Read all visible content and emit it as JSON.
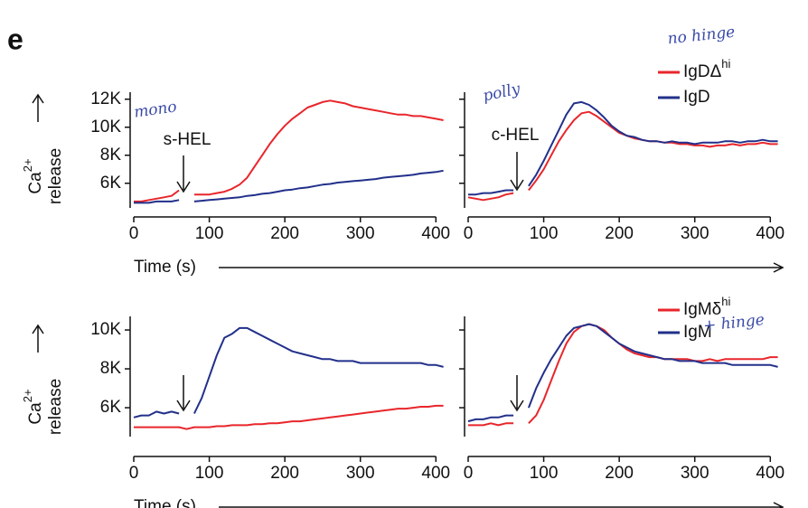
{
  "panel_label": "e",
  "chart_data": [
    {
      "type": "line",
      "ylabel": {
        "base": "Ca",
        "sup": "2+",
        "line2": "release"
      },
      "xlabel": "Time (s)",
      "annotations": [
        "s-HEL",
        "mono"
      ],
      "x": [
        0,
        10,
        20,
        30,
        40,
        50,
        60,
        70,
        80,
        90,
        100,
        110,
        120,
        130,
        140,
        150,
        160,
        170,
        180,
        190,
        200,
        210,
        220,
        230,
        240,
        250,
        260,
        270,
        280,
        290,
        300,
        310,
        320,
        330,
        340,
        350,
        360,
        370,
        380,
        390,
        400,
        410
      ],
      "series": [
        {
          "color": "#e8262b",
          "values": [
            4700,
            4700,
            4800,
            4900,
            5000,
            5100,
            5500,
            null,
            5200,
            5200,
            5200,
            5300,
            5400,
            5600,
            5900,
            6400,
            7200,
            8000,
            8800,
            9500,
            10100,
            10600,
            11000,
            11400,
            11600,
            11800,
            11900,
            11800,
            11700,
            11500,
            11400,
            11300,
            11200,
            11100,
            11000,
            10900,
            10900,
            10800,
            10800,
            10700,
            10600,
            10500
          ]
        },
        {
          "color": "#22308a",
          "values": [
            4600,
            4600,
            4600,
            4700,
            4700,
            4700,
            4800,
            null,
            4700,
            4750,
            4800,
            4850,
            4900,
            4950,
            5000,
            5100,
            5150,
            5250,
            5300,
            5400,
            5500,
            5550,
            5650,
            5700,
            5800,
            5900,
            5950,
            6050,
            6100,
            6150,
            6200,
            6250,
            6300,
            6400,
            6450,
            6500,
            6550,
            6600,
            6700,
            6750,
            6800,
            6900
          ]
        }
      ],
      "xlim": [
        0,
        420
      ],
      "ylim": [
        4500,
        12500
      ],
      "xticks": [
        0,
        100,
        200,
        300,
        400
      ],
      "yticks": [
        {
          "value": 6000,
          "label": "6K"
        },
        {
          "value": 8000,
          "label": "8K"
        },
        {
          "value": 10000,
          "label": "10K"
        },
        {
          "value": 12000,
          "label": "12K"
        }
      ],
      "ytick_labels": true,
      "legend": false
    },
    {
      "type": "line",
      "annotations": [
        "c-HEL",
        "polly",
        "no hinge"
      ],
      "x": [
        0,
        10,
        20,
        30,
        40,
        50,
        60,
        70,
        80,
        90,
        100,
        110,
        120,
        130,
        140,
        150,
        160,
        170,
        180,
        190,
        200,
        210,
        220,
        230,
        240,
        250,
        260,
        270,
        280,
        290,
        300,
        310,
        320,
        330,
        340,
        350,
        360,
        370,
        380,
        390,
        400,
        410
      ],
      "series": [
        {
          "name": "IgDΔ",
          "name_sup": "hi",
          "color": "#e8262b",
          "values": [
            5000,
            4900,
            4800,
            4900,
            5000,
            5200,
            5300,
            null,
            5500,
            6200,
            7000,
            8000,
            9000,
            9800,
            10500,
            11000,
            11100,
            10800,
            10400,
            10000,
            9600,
            9400,
            9200,
            9100,
            9000,
            9000,
            8900,
            8900,
            8800,
            8800,
            8700,
            8700,
            8600,
            8700,
            8700,
            8800,
            8700,
            8800,
            8800,
            8900,
            8800,
            8800
          ]
        },
        {
          "name": "IgD",
          "color": "#22308a",
          "values": [
            5200,
            5200,
            5300,
            5300,
            5400,
            5500,
            5500,
            null,
            5800,
            6600,
            7600,
            8700,
            9800,
            10900,
            11700,
            11800,
            11600,
            11200,
            10700,
            10100,
            9700,
            9400,
            9300,
            9100,
            9000,
            9000,
            8900,
            9000,
            8900,
            8900,
            8800,
            8900,
            8900,
            8900,
            9000,
            9000,
            8900,
            9000,
            9000,
            9100,
            9000,
            9000
          ]
        }
      ],
      "xlim": [
        0,
        420
      ],
      "ylim": [
        4500,
        12500
      ],
      "xticks": [
        0,
        100,
        200,
        300,
        400
      ],
      "yticks": [
        6000,
        8000,
        10000,
        12000
      ],
      "ytick_labels": false,
      "legend": true
    },
    {
      "type": "line",
      "ylabel": {
        "base": "Ca",
        "sup": "2+",
        "line2": "release"
      },
      "xlabel": "Time (s)",
      "annotations": [],
      "x": [
        0,
        10,
        20,
        30,
        40,
        50,
        60,
        70,
        80,
        90,
        100,
        110,
        120,
        130,
        140,
        150,
        160,
        170,
        180,
        190,
        200,
        210,
        220,
        230,
        240,
        250,
        260,
        270,
        280,
        290,
        300,
        310,
        320,
        330,
        340,
        350,
        360,
        370,
        380,
        390,
        400,
        410
      ],
      "series": [
        {
          "color": "#22308a",
          "values": [
            5500,
            5600,
            5600,
            5800,
            5700,
            5800,
            5700,
            null,
            5700,
            6500,
            7600,
            8700,
            9600,
            9800,
            10100,
            10100,
            9900,
            9700,
            9500,
            9300,
            9100,
            8900,
            8800,
            8700,
            8600,
            8500,
            8500,
            8400,
            8400,
            8400,
            8300,
            8300,
            8300,
            8300,
            8300,
            8300,
            8300,
            8300,
            8300,
            8200,
            8200,
            8100
          ]
        },
        {
          "color": "#e8262b",
          "values": [
            5000,
            5000,
            5000,
            5000,
            5000,
            5000,
            5000,
            4900,
            5000,
            5000,
            5000,
            5050,
            5050,
            5100,
            5100,
            5100,
            5150,
            5150,
            5200,
            5200,
            5250,
            5300,
            5300,
            5350,
            5400,
            5450,
            5500,
            5550,
            5600,
            5650,
            5700,
            5750,
            5800,
            5850,
            5900,
            5950,
            5950,
            6000,
            6050,
            6050,
            6100,
            6100
          ]
        }
      ],
      "xlim": [
        0,
        420
      ],
      "ylim": [
        4700,
        10700
      ],
      "xticks": [
        0,
        100,
        200,
        300,
        400
      ],
      "yticks": [
        {
          "value": 6000,
          "label": "6K"
        },
        {
          "value": 8000,
          "label": "8K"
        },
        {
          "value": 10000,
          "label": "10K"
        }
      ],
      "ytick_labels": true,
      "legend": false
    },
    {
      "type": "line",
      "annotations": [
        "+ hinge"
      ],
      "x": [
        0,
        10,
        20,
        30,
        40,
        50,
        60,
        70,
        80,
        90,
        100,
        110,
        120,
        130,
        140,
        150,
        160,
        170,
        180,
        190,
        200,
        210,
        220,
        230,
        240,
        250,
        260,
        270,
        280,
        290,
        300,
        310,
        320,
        330,
        340,
        350,
        360,
        370,
        380,
        390,
        400,
        410
      ],
      "series": [
        {
          "name": "IgMδ",
          "name_sup": "hi",
          "color": "#e8262b",
          "values": [
            5100,
            5100,
            5100,
            5200,
            5100,
            5200,
            5200,
            null,
            5200,
            5600,
            6400,
            7400,
            8400,
            9300,
            9900,
            10200,
            10300,
            10200,
            10000,
            9600,
            9300,
            9000,
            8800,
            8700,
            8600,
            8600,
            8500,
            8500,
            8500,
            8500,
            8400,
            8400,
            8500,
            8400,
            8500,
            8500,
            8500,
            8500,
            8500,
            8500,
            8600,
            8600
          ]
        },
        {
          "name": "IgM",
          "color": "#22308a",
          "values": [
            5300,
            5400,
            5400,
            5500,
            5500,
            5600,
            5600,
            null,
            6000,
            7000,
            7800,
            8500,
            9100,
            9700,
            10100,
            10200,
            10300,
            10200,
            9900,
            9600,
            9300,
            9100,
            8900,
            8800,
            8700,
            8600,
            8500,
            8500,
            8400,
            8400,
            8400,
            8300,
            8300,
            8300,
            8300,
            8200,
            8200,
            8200,
            8200,
            8200,
            8200,
            8100
          ]
        }
      ],
      "xlim": [
        0,
        420
      ],
      "ylim": [
        4700,
        10700
      ],
      "xticks": [
        0,
        100,
        200,
        300,
        400
      ],
      "yticks": [
        6000,
        8000,
        10000
      ],
      "ytick_labels": false,
      "legend": true
    }
  ]
}
